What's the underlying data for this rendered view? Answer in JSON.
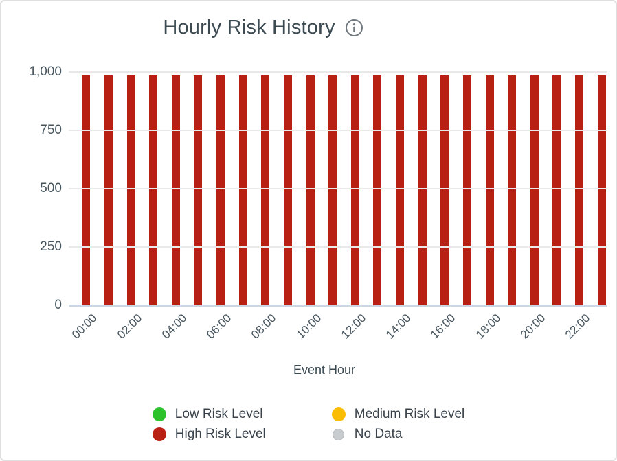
{
  "card": {
    "title": "Hourly Risk History",
    "info_icon": "info-icon"
  },
  "chart_data": {
    "type": "bar",
    "title": "Hourly Risk History",
    "xlabel": "Event Hour",
    "ylabel": "",
    "categories": [
      "00:00",
      "01:00",
      "02:00",
      "03:00",
      "04:00",
      "05:00",
      "06:00",
      "07:00",
      "08:00",
      "09:00",
      "10:00",
      "11:00",
      "12:00",
      "13:00",
      "14:00",
      "15:00",
      "16:00",
      "17:00",
      "18:00",
      "19:00",
      "20:00",
      "21:00",
      "22:00",
      "23:00"
    ],
    "x_tick_labels": [
      "00:00",
      "02:00",
      "04:00",
      "06:00",
      "08:00",
      "10:00",
      "12:00",
      "14:00",
      "16:00",
      "18:00",
      "20:00",
      "22:00"
    ],
    "series": [
      {
        "name": "High Risk Level",
        "color": "#b82014",
        "values": [
          985,
          985,
          985,
          985,
          985,
          985,
          985,
          985,
          985,
          985,
          985,
          985,
          985,
          985,
          985,
          985,
          985,
          985,
          985,
          985,
          985,
          985,
          985,
          985
        ]
      }
    ],
    "ylim": [
      0,
      1000
    ],
    "yticks": [
      0,
      250,
      500,
      750,
      1000
    ],
    "ytick_labels": [
      "0",
      "250",
      "500",
      "750",
      "1,000"
    ],
    "grid": true,
    "legend_position": "bottom",
    "legend": [
      {
        "label": "Low Risk Level",
        "color": "#2cc22c"
      },
      {
        "label": "High Risk Level",
        "color": "#b82014"
      },
      {
        "label": "Medium Risk Level",
        "color": "#fbbc04"
      },
      {
        "label": "No Data",
        "color": "#c9ccce"
      }
    ],
    "colors": {
      "gridline": "#e9e9e9",
      "baseline": "#ccd5e2",
      "text": "#47555e",
      "title": "#3c4a52"
    }
  }
}
